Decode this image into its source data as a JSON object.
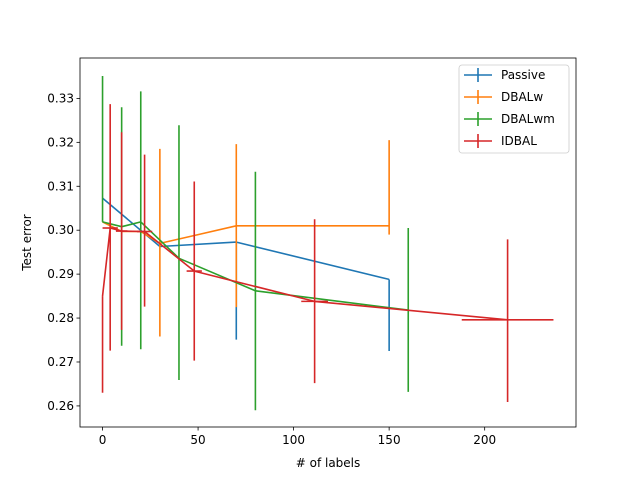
{
  "chart_data": {
    "type": "line",
    "title": "",
    "xlabel": "# of labels",
    "ylabel": "Test error",
    "xlim": [
      -11.8,
      247.8
    ],
    "ylim": [
      0.2552,
      0.3392
    ],
    "xticks": [
      0,
      50,
      100,
      150,
      200
    ],
    "yticks": [
      0.26,
      0.27,
      0.28,
      0.29,
      0.3,
      0.31,
      0.32,
      0.33
    ],
    "grid": false,
    "legend_position": "top-right",
    "series": [
      {
        "name": "Passive",
        "color": "#1f77b4",
        "points": [
          {
            "x": 0,
            "y": 0.3073,
            "y_low": 0.3073,
            "y_high": 0.3073
          },
          {
            "x": 30,
            "y": 0.2963,
            "y_low": 0.2963,
            "y_high": 0.2963
          },
          {
            "x": 70,
            "y": 0.2973,
            "y_low": 0.2751,
            "y_high": 0.2973
          },
          {
            "x": 150,
            "y": 0.2888,
            "y_low": 0.2725,
            "y_high": 0.2888
          }
        ]
      },
      {
        "name": "DBALw",
        "color": "#ff7f0e",
        "points": [
          {
            "x": 0,
            "y": 0.3019,
            "y_low": 0.3019,
            "y_high": 0.3019
          },
          {
            "x": 10,
            "y": 0.2997,
            "y_low": 0.2997,
            "y_high": 0.2997
          },
          {
            "x": 20,
            "y": 0.2997,
            "y_low": 0.2997,
            "y_high": 0.2997
          },
          {
            "x": 30,
            "y": 0.297,
            "y_low": 0.2758,
            "y_high": 0.3185
          },
          {
            "x": 50,
            "y": 0.299,
            "y_low": 0.299,
            "y_high": 0.299
          },
          {
            "x": 70,
            "y": 0.301,
            "y_low": 0.2825,
            "y_high": 0.3196
          },
          {
            "x": 150,
            "y": 0.301,
            "y_low": 0.299,
            "y_high": 0.3205
          }
        ]
      },
      {
        "name": "DBALwm",
        "color": "#2ca02c",
        "points": [
          {
            "x": 0,
            "y": 0.3019,
            "y_low": 0.3019,
            "y_high": 0.3351
          },
          {
            "x": 10,
            "y": 0.3008,
            "y_low": 0.2737,
            "y_high": 0.328
          },
          {
            "x": 20,
            "y": 0.3019,
            "y_low": 0.2729,
            "y_high": 0.3316
          },
          {
            "x": 40,
            "y": 0.2936,
            "y_low": 0.2659,
            "y_high": 0.3239
          },
          {
            "x": 80,
            "y": 0.2862,
            "y_low": 0.259,
            "y_high": 0.3133
          },
          {
            "x": 160,
            "y": 0.2818,
            "y_low": 0.2632,
            "y_high": 0.3005
          }
        ]
      },
      {
        "name": "IDBAL",
        "color": "#d62728",
        "points": [
          {
            "x": 0,
            "y": 0.2849,
            "x_err": 0,
            "y_low": 0.263,
            "y_high": 0.2849
          },
          {
            "x": 4,
            "y": 0.3005,
            "x_err": 4,
            "y_low": 0.2726,
            "y_high": 0.3287
          },
          {
            "x": 10,
            "y": 0.2998,
            "x_err": 3,
            "y_low": 0.2773,
            "y_high": 0.3223
          },
          {
            "x": 22,
            "y": 0.2997,
            "x_err": 4,
            "y_low": 0.2826,
            "y_high": 0.3172
          },
          {
            "x": 48,
            "y": 0.2907,
            "x_err": 4,
            "y_low": 0.2703,
            "y_high": 0.3111
          },
          {
            "x": 111,
            "y": 0.2838,
            "x_err": 7,
            "y_low": 0.2652,
            "y_high": 0.3025
          },
          {
            "x": 212,
            "y": 0.2796,
            "x_err": 24,
            "y_low": 0.2609,
            "y_high": 0.2979
          }
        ]
      }
    ]
  }
}
